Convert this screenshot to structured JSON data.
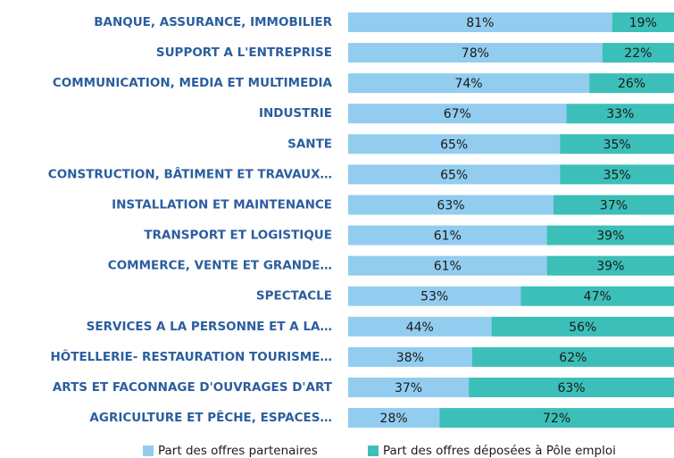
{
  "chart_data": {
    "type": "bar",
    "orientation": "horizontal",
    "stacked": true,
    "categories": [
      "BANQUE, ASSURANCE, IMMOBILIER",
      "SUPPORT A L'ENTREPRISE",
      "COMMUNICATION, MEDIA ET MULTIMEDIA",
      "INDUSTRIE",
      "SANTE",
      "CONSTRUCTION, BÂTIMENT ET TRAVAUX…",
      "INSTALLATION ET MAINTENANCE",
      "TRANSPORT ET LOGISTIQUE",
      "COMMERCE, VENTE ET GRANDE…",
      "SPECTACLE",
      "SERVICES A LA PERSONNE ET A LA…",
      "HÔTELLERIE- RESTAURATION TOURISME…",
      "ARTS ET FACONNAGE D'OUVRAGES D'ART",
      "AGRICULTURE ET PÊCHE, ESPACES…"
    ],
    "series": [
      {
        "name": "Part des offres partenaires",
        "color": "#92cdf0",
        "values": [
          81,
          78,
          74,
          67,
          65,
          65,
          63,
          61,
          61,
          53,
          44,
          38,
          37,
          28
        ],
        "value_labels": [
          "81%",
          "78%",
          "74%",
          "67%",
          "65%",
          "65%",
          "63%",
          "61%",
          "61%",
          "53%",
          "44%",
          "38%",
          "37%",
          "28%"
        ]
      },
      {
        "name": "Part des offres déposées à Pôle emploi",
        "color": "#3cbfb8",
        "values": [
          19,
          22,
          26,
          33,
          35,
          35,
          37,
          39,
          39,
          47,
          56,
          62,
          63,
          72
        ],
        "value_labels": [
          "19%",
          "22%",
          "26%",
          "33%",
          "35%",
          "35%",
          "37%",
          "39%",
          "39%",
          "47%",
          "56%",
          "62%",
          "63%",
          "72%"
        ]
      }
    ],
    "xlim": [
      0,
      100
    ],
    "legend": "bottom"
  }
}
